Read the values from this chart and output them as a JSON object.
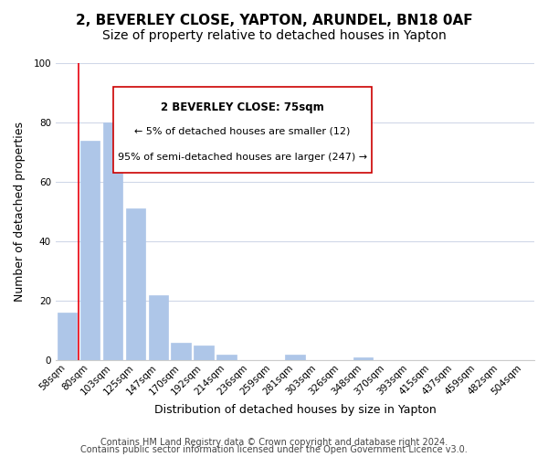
{
  "title": "2, BEVERLEY CLOSE, YAPTON, ARUNDEL, BN18 0AF",
  "subtitle": "Size of property relative to detached houses in Yapton",
  "xlabel": "Distribution of detached houses by size in Yapton",
  "ylabel": "Number of detached properties",
  "bin_labels": [
    "58sqm",
    "80sqm",
    "103sqm",
    "125sqm",
    "147sqm",
    "170sqm",
    "192sqm",
    "214sqm",
    "236sqm",
    "259sqm",
    "281sqm",
    "303sqm",
    "326sqm",
    "348sqm",
    "370sqm",
    "393sqm",
    "415sqm",
    "437sqm",
    "459sqm",
    "482sqm",
    "504sqm"
  ],
  "bar_values": [
    16,
    74,
    80,
    51,
    22,
    6,
    5,
    2,
    0,
    0,
    2,
    0,
    0,
    1,
    0,
    0,
    0,
    0,
    0,
    0,
    0
  ],
  "ylim": [
    0,
    100
  ],
  "bar_color": "#aec6e8",
  "marker_color": "#e8000d",
  "annotation_text_line1": "2 BEVERLEY CLOSE: 75sqm",
  "annotation_text_line2": "← 5% of detached houses are smaller (12)",
  "annotation_text_line3": "95% of semi-detached houses are larger (247) →",
  "footer_line1": "Contains HM Land Registry data © Crown copyright and database right 2024.",
  "footer_line2": "Contains public sector information licensed under the Open Government Licence v3.0.",
  "background_color": "#ffffff",
  "grid_color": "#d0d8e8",
  "title_fontsize": 11,
  "subtitle_fontsize": 10,
  "axis_label_fontsize": 9,
  "tick_fontsize": 7.5,
  "footer_fontsize": 7
}
